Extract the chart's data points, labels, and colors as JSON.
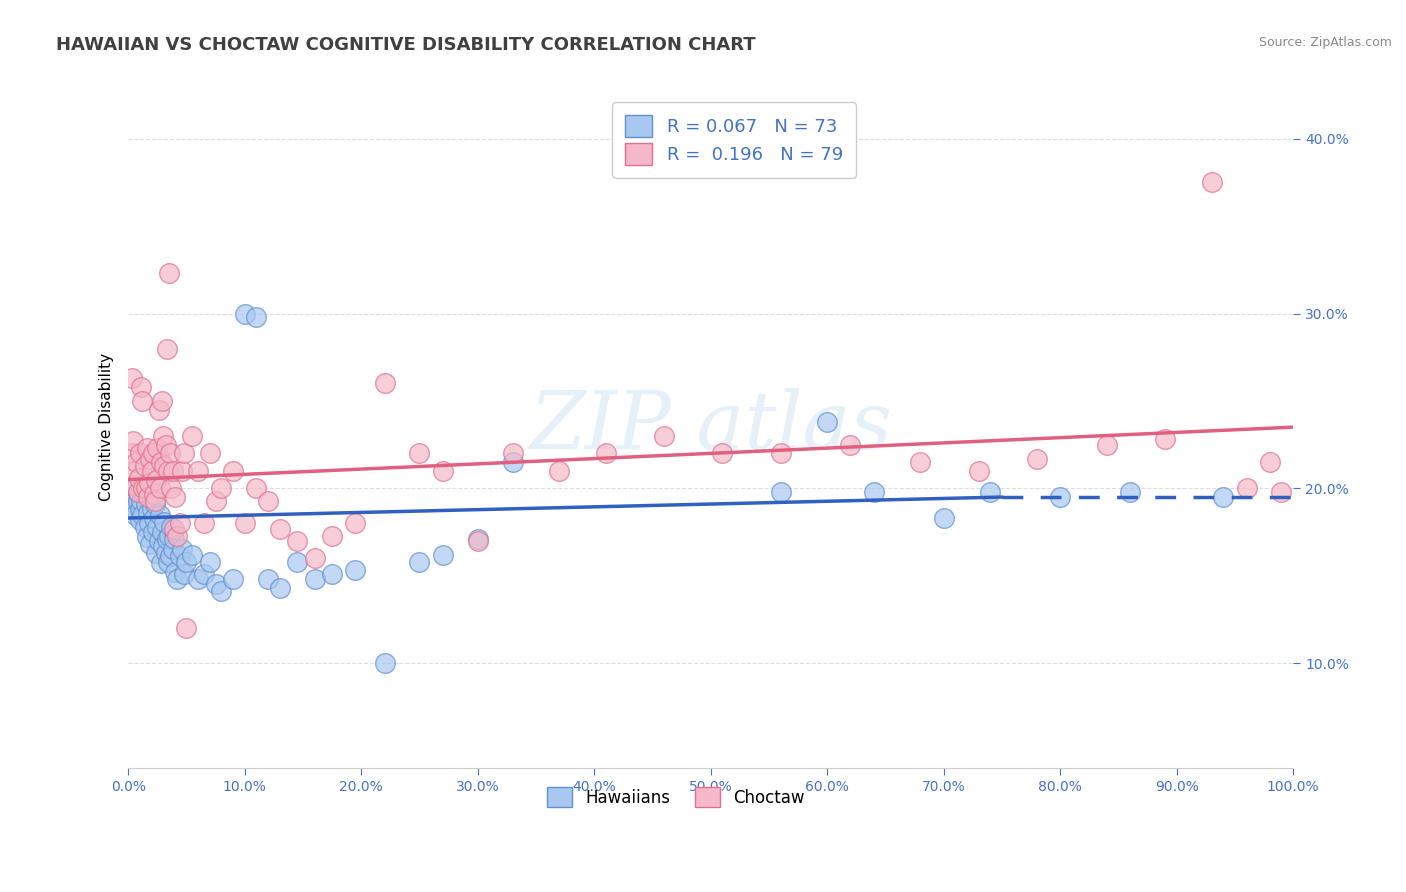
{
  "title": "HAWAIIAN VS CHOCTAW COGNITIVE DISABILITY CORRELATION CHART",
  "source_text": "Source: ZipAtlas.com",
  "ylabel": "Cognitive Disability",
  "xlabel": "",
  "xlim": [
    0.0,
    1.0
  ],
  "ylim": [
    0.04,
    0.43
  ],
  "xticks": [
    0.0,
    0.1,
    0.2,
    0.3,
    0.4,
    0.5,
    0.6,
    0.7,
    0.8,
    0.9,
    1.0
  ],
  "yticks": [
    0.1,
    0.2,
    0.3,
    0.4
  ],
  "ytick_labels": [
    "10.0%",
    "20.0%",
    "30.0%",
    "40.0%"
  ],
  "xtick_labels": [
    "0.0%",
    "10.0%",
    "20.0%",
    "30.0%",
    "40.0%",
    "50.0%",
    "60.0%",
    "70.0%",
    "80.0%",
    "90.0%",
    "100.0%"
  ],
  "hawaiian_color": "#a8c8f0",
  "choctaw_color": "#f4b8c8",
  "hawaiian_edge_color": "#6090d0",
  "choctaw_edge_color": "#e07090",
  "line_hawaiian_color": "#3060c0",
  "line_choctaw_color": "#e06080",
  "R_hawaiian": 0.067,
  "N_hawaiian": 73,
  "R_choctaw": 0.196,
  "N_choctaw": 79,
  "watermark": "ZIP atlas",
  "legend_labels": [
    "Hawaiians",
    "Choctaw"
  ],
  "background_color": "#ffffff",
  "grid_color": "#dddddd",
  "tick_color": "#4472C4",
  "title_color": "#404040",
  "source_color": "#888888",
  "hawaiian_x": [
    0.002,
    0.003,
    0.004,
    0.005,
    0.006,
    0.007,
    0.008,
    0.009,
    0.01,
    0.01,
    0.011,
    0.012,
    0.013,
    0.014,
    0.015,
    0.016,
    0.017,
    0.018,
    0.019,
    0.02,
    0.021,
    0.022,
    0.023,
    0.024,
    0.025,
    0.026,
    0.027,
    0.028,
    0.029,
    0.03,
    0.031,
    0.032,
    0.033,
    0.034,
    0.035,
    0.036,
    0.037,
    0.038,
    0.039,
    0.04,
    0.042,
    0.044,
    0.046,
    0.048,
    0.05,
    0.055,
    0.06,
    0.065,
    0.07,
    0.075,
    0.08,
    0.09,
    0.1,
    0.11,
    0.12,
    0.13,
    0.145,
    0.16,
    0.175,
    0.195,
    0.22,
    0.25,
    0.27,
    0.3,
    0.33,
    0.56,
    0.6,
    0.64,
    0.7,
    0.74,
    0.8,
    0.86,
    0.94
  ],
  "hawaiian_y": [
    0.195,
    0.19,
    0.188,
    0.192,
    0.185,
    0.2,
    0.193,
    0.197,
    0.188,
    0.182,
    0.193,
    0.185,
    0.198,
    0.178,
    0.191,
    0.172,
    0.186,
    0.18,
    0.168,
    0.188,
    0.175,
    0.183,
    0.191,
    0.163,
    0.178,
    0.17,
    0.185,
    0.157,
    0.175,
    0.167,
    0.181,
    0.163,
    0.171,
    0.158,
    0.173,
    0.161,
    0.178,
    0.165,
    0.171,
    0.152,
    0.148,
    0.161,
    0.165,
    0.151,
    0.158,
    0.162,
    0.148,
    0.151,
    0.158,
    0.145,
    0.141,
    0.148,
    0.3,
    0.298,
    0.148,
    0.143,
    0.158,
    0.148,
    0.151,
    0.153,
    0.1,
    0.158,
    0.162,
    0.171,
    0.215,
    0.198,
    0.238,
    0.198,
    0.183,
    0.198,
    0.195,
    0.198,
    0.195
  ],
  "choctaw_x": [
    0.002,
    0.003,
    0.004,
    0.005,
    0.006,
    0.007,
    0.008,
    0.009,
    0.01,
    0.011,
    0.012,
    0.013,
    0.014,
    0.015,
    0.016,
    0.017,
    0.018,
    0.019,
    0.02,
    0.021,
    0.022,
    0.023,
    0.024,
    0.025,
    0.026,
    0.027,
    0.028,
    0.029,
    0.03,
    0.031,
    0.032,
    0.033,
    0.034,
    0.035,
    0.036,
    0.037,
    0.038,
    0.039,
    0.04,
    0.042,
    0.044,
    0.046,
    0.048,
    0.05,
    0.055,
    0.06,
    0.065,
    0.07,
    0.075,
    0.08,
    0.09,
    0.1,
    0.11,
    0.12,
    0.13,
    0.145,
    0.16,
    0.175,
    0.195,
    0.22,
    0.25,
    0.27,
    0.3,
    0.33,
    0.37,
    0.41,
    0.46,
    0.51,
    0.56,
    0.62,
    0.68,
    0.73,
    0.78,
    0.84,
    0.89,
    0.93,
    0.96,
    0.98,
    0.99
  ],
  "choctaw_y": [
    0.22,
    0.263,
    0.227,
    0.202,
    0.21,
    0.215,
    0.198,
    0.206,
    0.22,
    0.258,
    0.25,
    0.2,
    0.213,
    0.2,
    0.223,
    0.195,
    0.203,
    0.217,
    0.21,
    0.22,
    0.197,
    0.193,
    0.205,
    0.223,
    0.245,
    0.2,
    0.215,
    0.25,
    0.23,
    0.213,
    0.225,
    0.28,
    0.21,
    0.323,
    0.22,
    0.2,
    0.21,
    0.177,
    0.195,
    0.173,
    0.18,
    0.21,
    0.22,
    0.12,
    0.23,
    0.21,
    0.18,
    0.22,
    0.193,
    0.2,
    0.21,
    0.18,
    0.2,
    0.193,
    0.177,
    0.17,
    0.16,
    0.173,
    0.18,
    0.26,
    0.22,
    0.21,
    0.17,
    0.22,
    0.21,
    0.22,
    0.23,
    0.22,
    0.22,
    0.225,
    0.215,
    0.21,
    0.217,
    0.225,
    0.228,
    0.375,
    0.2,
    0.215,
    0.198
  ]
}
